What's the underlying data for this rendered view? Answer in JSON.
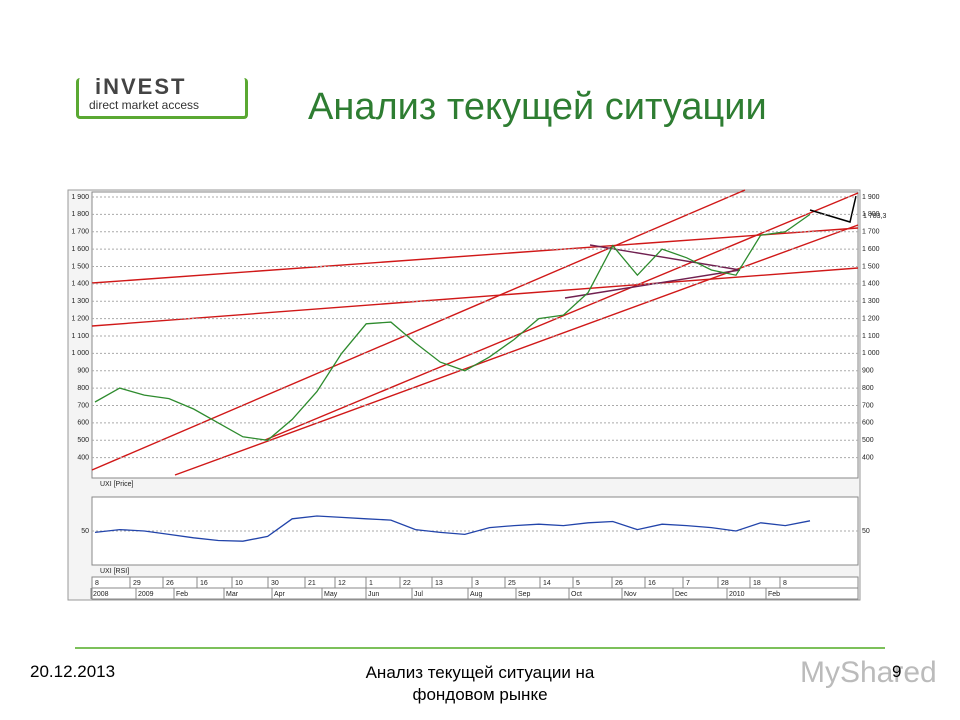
{
  "logo": {
    "brand": "iNVEST",
    "tagline": "direct market access"
  },
  "title": "Анализ текущей ситуации",
  "chart_data": [
    {
      "type": "line",
      "series": [
        {
          "name": "UXI [Price]",
          "color": "#2e8b2e",
          "values": [
            720,
            800,
            760,
            740,
            680,
            600,
            520,
            500,
            620,
            780,
            1000,
            1170,
            1180,
            1060,
            950,
            900,
            980,
            1080,
            1200,
            1220,
            1350,
            1620,
            1450,
            1600,
            1550,
            1480,
            1450,
            1680,
            1700,
            1800
          ]
        }
      ],
      "ylim": [
        300,
        1900
      ],
      "yticks": [
        400,
        500,
        600,
        700,
        800,
        900,
        {
          "value": 1000,
          "label": "1 000"
        },
        {
          "value": 1100,
          "label": "1 100"
        },
        {
          "value": 1200,
          "label": "1 200"
        },
        {
          "value": 1300,
          "label": "1 300"
        },
        {
          "value": 1400,
          "label": "1 400"
        },
        {
          "value": 1500,
          "label": "1 500"
        },
        {
          "value": 1600,
          "label": "1 600"
        },
        {
          "value": 1700,
          "label": "1 700"
        },
        {
          "value": 1800,
          "label": "1 800"
        },
        {
          "value": 1900,
          "label": "1 900"
        }
      ],
      "last_value_label": "1 783,3",
      "grid": true
    },
    {
      "type": "line",
      "series": [
        {
          "name": "UXI [RSI]",
          "color": "#2244aa",
          "values": [
            48,
            52,
            50,
            45,
            40,
            36,
            35,
            42,
            68,
            72,
            70,
            68,
            66,
            52,
            48,
            45,
            55,
            58,
            60,
            58,
            62,
            64,
            52,
            60,
            58,
            55,
            50,
            62,
            58,
            65
          ]
        }
      ],
      "ylim": [
        0,
        100
      ],
      "yticks": [
        50
      ],
      "day_ticks": [
        "8",
        "29",
        "26",
        "16",
        "10",
        "30",
        "21",
        "12",
        "1",
        "22",
        "13",
        "3",
        "25",
        "14",
        "5",
        "26",
        "16",
        "7",
        "28",
        "18",
        "8"
      ],
      "month_ticks": [
        "2008",
        "2009",
        "Feb",
        "Mar",
        "Apr",
        "May",
        "Jun",
        "Jul",
        "Aug",
        "Sep",
        "Oct",
        "Nov",
        "Dec",
        "2010",
        "Feb"
      ]
    }
  ],
  "footer": {
    "date": "20.12.2013",
    "caption": "Анализ текущей ситуации на фондовом рынке",
    "page": "9",
    "watermark": "MyShared"
  }
}
